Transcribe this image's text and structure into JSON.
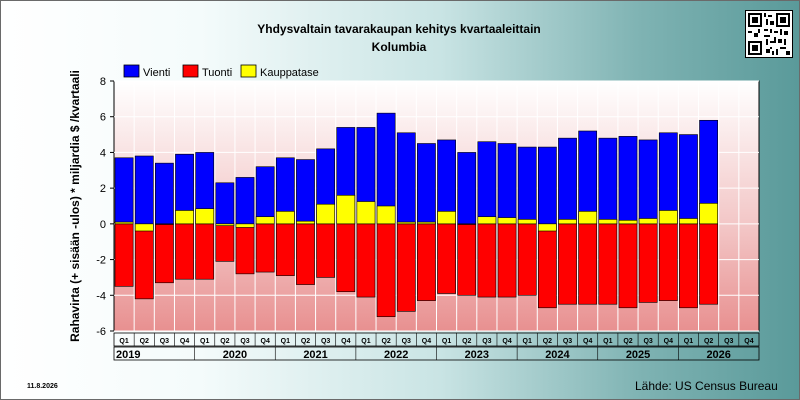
{
  "chart_data": {
    "type": "bar",
    "title": "Yhdysvaltain tavarakaupan kehitys kvartaaleittain",
    "subtitle": "Kolumbia",
    "ylabel": "Rahavirta (+ sisään -ulos)  * miljardia $ /kvartaali",
    "ylim": [
      -6,
      8
    ],
    "yticks": [
      -6,
      -4,
      -2,
      0,
      2,
      4,
      6,
      8
    ],
    "grid": true,
    "legend_position": "top-left",
    "quarter_labels": [
      "Q1",
      "Q2",
      "Q3",
      "Q4",
      "Q1",
      "Q2",
      "Q3",
      "Q4",
      "Q1",
      "Q2",
      "Q3",
      "Q4",
      "Q1",
      "Q2",
      "Q3",
      "Q4",
      "Q1",
      "Q2",
      "Q3",
      "Q4",
      "Q1",
      "Q2",
      "Q3",
      "Q4",
      "Q1",
      "Q2",
      "Q3",
      "Q4",
      "Q1",
      "Q2",
      "Q3",
      "Q4"
    ],
    "years": [
      "2019",
      "2020",
      "2021",
      "2022",
      "2023",
      "2024",
      "2025",
      "2026"
    ],
    "series": [
      {
        "name": "Vienti",
        "color": "#0000ff",
        "values": [
          3.7,
          3.8,
          3.4,
          3.9,
          4.0,
          2.3,
          2.6,
          3.2,
          3.7,
          3.6,
          4.2,
          5.4,
          5.4,
          6.2,
          5.1,
          4.5,
          4.7,
          4.0,
          4.6,
          4.5,
          4.3,
          4.3,
          4.8,
          5.2,
          4.8,
          4.9,
          4.7,
          5.1,
          5.0,
          5.8,
          null,
          null
        ]
      },
      {
        "name": "Tuonti",
        "color": "#ff0000",
        "values": [
          -3.5,
          -4.2,
          -3.3,
          -3.1,
          -3.1,
          -2.1,
          -2.8,
          -2.7,
          -2.9,
          -3.4,
          -3.0,
          -3.8,
          -4.1,
          -5.2,
          -4.9,
          -4.3,
          -3.9,
          -4.0,
          -4.1,
          -4.1,
          -4.0,
          -4.7,
          -4.5,
          -4.5,
          -4.5,
          -4.7,
          -4.4,
          -4.3,
          -4.7,
          -4.5,
          null,
          null
        ]
      },
      {
        "name": "Kauppatase",
        "color": "#ffff00",
        "values": [
          0.1,
          -0.4,
          0.0,
          0.75,
          0.85,
          -0.1,
          -0.2,
          0.4,
          0.7,
          0.15,
          1.1,
          1.6,
          1.25,
          1.0,
          0.1,
          0.1,
          0.7,
          0.0,
          0.4,
          0.35,
          0.25,
          -0.4,
          0.25,
          0.7,
          0.25,
          0.2,
          0.3,
          0.75,
          0.3,
          1.15,
          null,
          null
        ]
      }
    ]
  },
  "footer": {
    "date": "11.8.2026",
    "source": "Lähde: US Census Bureau"
  }
}
